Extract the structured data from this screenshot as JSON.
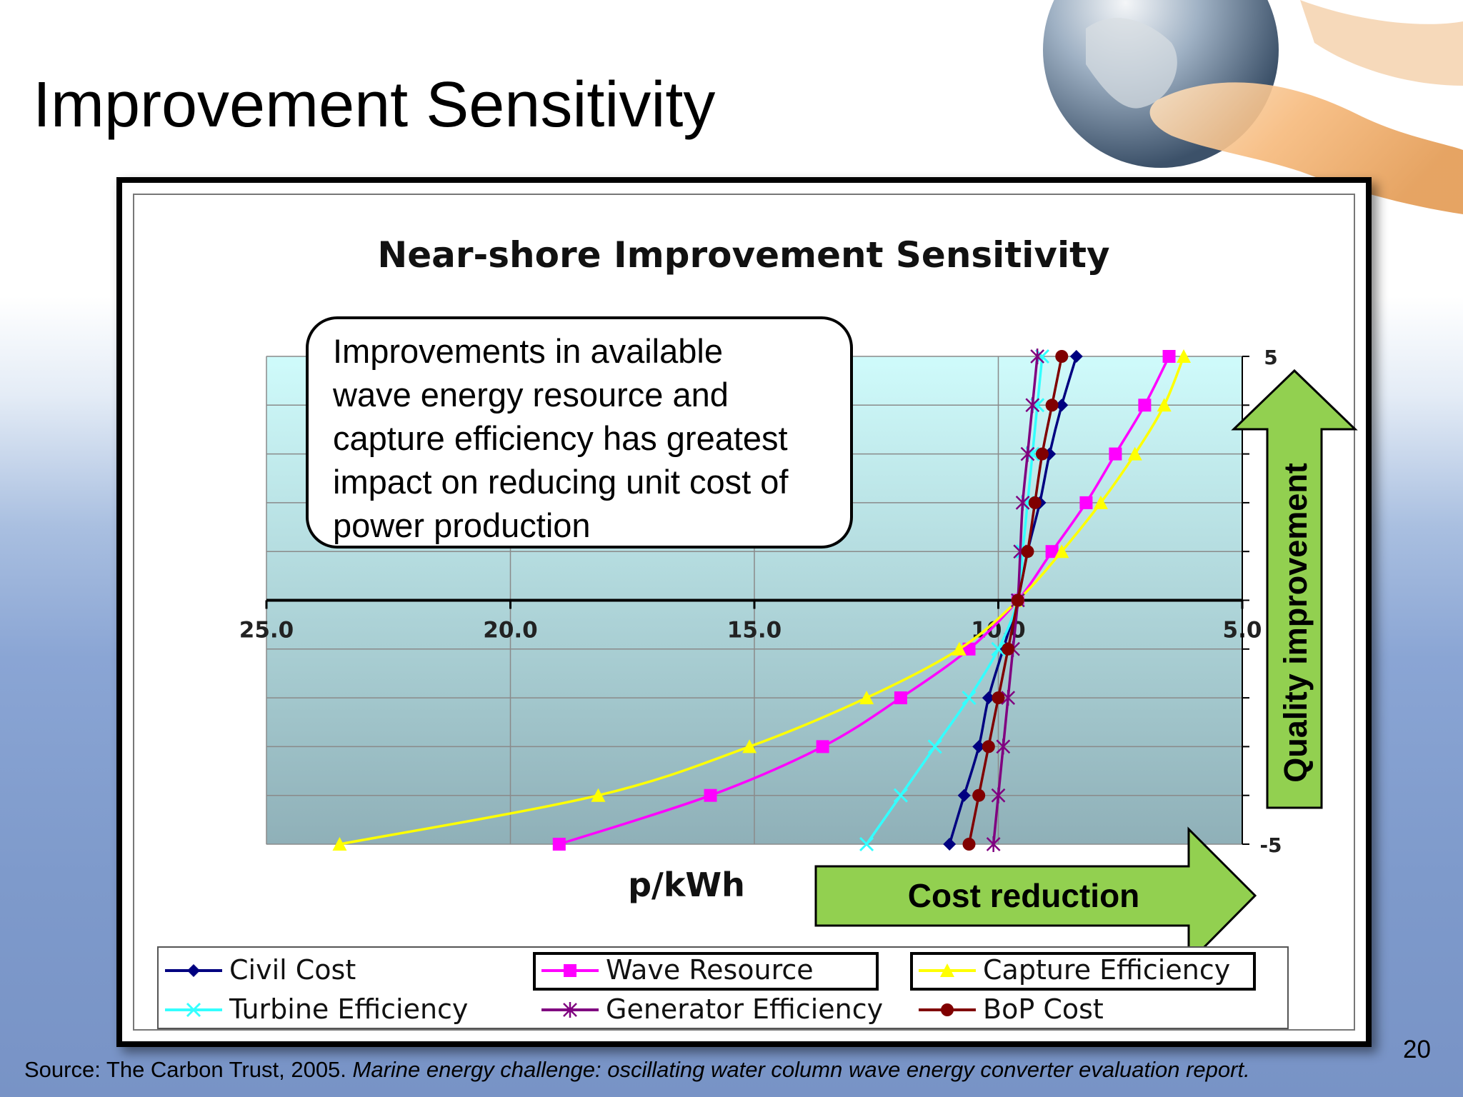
{
  "slide": {
    "title": "Improvement Sensitivity",
    "page_number": "20",
    "source_prefix": "Source: The Carbon Trust, 2005. ",
    "source_title": "Marine energy challenge: oscillating water column wave energy converter evaluation report."
  },
  "callout": {
    "lines": [
      "Improvements in available",
      "wave energy resource and",
      "capture efficiency has greatest",
      "impact on reducing unit cost of",
      "power production"
    ]
  },
  "arrows": {
    "horizontal_label": "Cost reduction",
    "vertical_label": "Quality improvement",
    "fill_color": "#92d050"
  },
  "chart_data": {
    "type": "line",
    "title": "Near-shore Improvement Sensitivity",
    "xlabel": "p/kWh",
    "ylabel": "",
    "x_reversed": true,
    "xlim": [
      25.0,
      5.0
    ],
    "ylim": [
      -5,
      5
    ],
    "x_ticks": [
      "25.0",
      "20.0",
      "15.0",
      "10.0",
      "5.0"
    ],
    "y_ticks": [
      "5",
      "-5"
    ],
    "y_levels": [
      5,
      4,
      3,
      2,
      1,
      0,
      -1,
      -2,
      -3,
      -4,
      -5
    ],
    "grid": true,
    "legend_position": "bottom",
    "series": [
      {
        "name": "Civil Cost",
        "color": "#000080",
        "marker": "diamond",
        "x": [
          8.4,
          8.7,
          8.95,
          9.15,
          9.4,
          9.6,
          9.9,
          10.2,
          10.4,
          10.7,
          11.0
        ],
        "y": [
          5,
          4,
          3,
          2,
          1,
          0,
          -1,
          -2,
          -3,
          -4,
          -5
        ]
      },
      {
        "name": "Wave Resource",
        "color": "#ff00ff",
        "marker": "square",
        "x": [
          6.5,
          7.0,
          7.6,
          8.2,
          8.9,
          9.6,
          10.6,
          12.0,
          13.6,
          15.9,
          19.0
        ],
        "y": [
          5,
          4,
          3,
          2,
          1,
          0,
          -1,
          -2,
          -3,
          -4,
          -5
        ]
      },
      {
        "name": "Capture Efficiency",
        "color": "#ffff00",
        "marker": "triangle",
        "x": [
          6.2,
          6.6,
          7.2,
          7.9,
          8.7,
          9.6,
          10.8,
          12.7,
          15.1,
          18.2,
          23.5
        ],
        "y": [
          5,
          4,
          3,
          2,
          1,
          0,
          -1,
          -2,
          -3,
          -4,
          -5
        ]
      },
      {
        "name": "Turbine Efficiency",
        "color": "#33ffff",
        "marker": "x",
        "x": [
          9.1,
          9.2,
          9.3,
          9.4,
          9.5,
          9.6,
          10.0,
          10.6,
          11.3,
          12.0,
          12.7
        ],
        "y": [
          5,
          4,
          3,
          2,
          1,
          0,
          -1,
          -2,
          -3,
          -4,
          -5
        ]
      },
      {
        "name": "Generator Efficiency",
        "color": "#800080",
        "marker": "star",
        "x": [
          9.2,
          9.3,
          9.4,
          9.5,
          9.55,
          9.6,
          9.7,
          9.8,
          9.9,
          10.0,
          10.1
        ],
        "y": [
          5,
          4,
          3,
          2,
          1,
          0,
          -1,
          -2,
          -3,
          -4,
          -5
        ]
      },
      {
        "name": "BoP Cost",
        "color": "#800000",
        "marker": "circle",
        "x": [
          8.7,
          8.9,
          9.1,
          9.25,
          9.4,
          9.6,
          9.8,
          10.0,
          10.2,
          10.4,
          10.6
        ],
        "y": [
          5,
          4,
          3,
          2,
          1,
          0,
          -1,
          -2,
          -3,
          -4,
          -5
        ]
      }
    ],
    "legend_highlight": [
      "Wave Resource",
      "Capture Efficiency"
    ]
  }
}
